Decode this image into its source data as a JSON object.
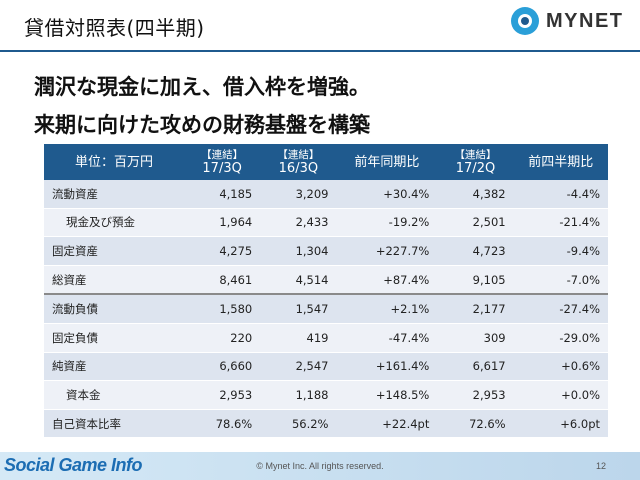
{
  "header": {
    "title": "貸借対照表(四半期)",
    "logo_text": "MYNET"
  },
  "headline": {
    "line1": "潤沢な現金に加え、借入枠を増強。",
    "line2": "来期に向けた攻めの財務基盤を構築"
  },
  "table": {
    "columns": [
      {
        "tag": "",
        "label": "単位：百万円"
      },
      {
        "tag": "【連結】",
        "label": "17/3Q"
      },
      {
        "tag": "【連結】",
        "label": "16/3Q"
      },
      {
        "tag": "",
        "label": "前年同期比"
      },
      {
        "tag": "【連結】",
        "label": "17/2Q"
      },
      {
        "tag": "",
        "label": "前四半期比"
      }
    ],
    "rows": [
      {
        "label": "流動資産",
        "v1": "4,185",
        "v2": "3,209",
        "v3": "+30.4%",
        "v4": "4,382",
        "v5": "-4.4%"
      },
      {
        "label": "現金及び預金",
        "v1": "1,964",
        "v2": "2,433",
        "v3": "-19.2%",
        "v4": "2,501",
        "v5": "-21.4%"
      },
      {
        "label": "固定資産",
        "v1": "4,275",
        "v2": "1,304",
        "v3": "+227.7%",
        "v4": "4,723",
        "v5": "-9.4%"
      },
      {
        "label": "総資産",
        "v1": "8,461",
        "v2": "4,514",
        "v3": "+87.4%",
        "v4": "9,105",
        "v5": "-7.0%"
      },
      {
        "label": "流動負債",
        "v1": "1,580",
        "v2": "1,547",
        "v3": "+2.1%",
        "v4": "2,177",
        "v5": "-27.4%"
      },
      {
        "label": "固定負債",
        "v1": "220",
        "v2": "419",
        "v3": "-47.4%",
        "v4": "309",
        "v5": "-29.0%"
      },
      {
        "label": "純資産",
        "v1": "6,660",
        "v2": "2,547",
        "v3": "+161.4%",
        "v4": "6,617",
        "v5": "+0.6%"
      },
      {
        "label": "資本金",
        "v1": "2,953",
        "v2": "1,188",
        "v3": "+148.5%",
        "v4": "2,953",
        "v5": "+0.0%"
      },
      {
        "label": "自己資本比率",
        "v1": "78.6%",
        "v2": "56.2%",
        "v3": "+22.4pt",
        "v4": "72.6%",
        "v5": "+6.0pt"
      }
    ]
  },
  "footer": {
    "site_logo": "Social Game Info",
    "copyright": "© Mynet Inc. All rights reserved.",
    "page": "12"
  },
  "colors": {
    "header_fill": "#1f5a8e",
    "row_odd": "#dde4ef",
    "row_even": "#eef1f7",
    "logo_accent": "#2a9fd8"
  }
}
